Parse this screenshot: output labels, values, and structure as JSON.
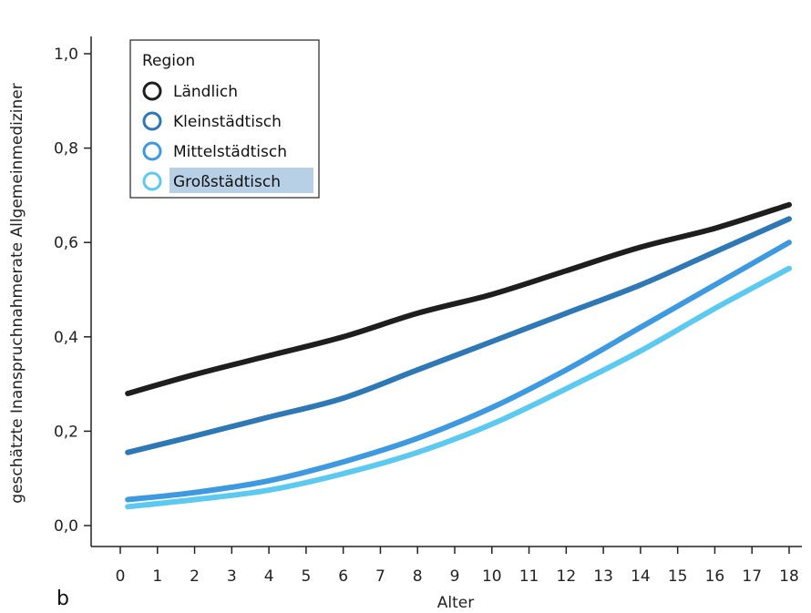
{
  "panel_label": "b",
  "chart_data": {
    "type": "line",
    "xlabel": "Alter",
    "ylabel": "geschätzte Inanspruchnahmerate Allgemeinmediziner",
    "xlim": [
      0,
      18
    ],
    "ylim": [
      0.0,
      1.0
    ],
    "x_ticks": [
      "0",
      "1",
      "2",
      "3",
      "4",
      "5",
      "6",
      "7",
      "8",
      "9",
      "10",
      "11",
      "12",
      "13",
      "14",
      "15",
      "16",
      "17",
      "18"
    ],
    "y_ticks": [
      "0,0",
      "0,2",
      "0,4",
      "0,6",
      "0,8",
      "1,0"
    ],
    "y_tick_values": [
      0.0,
      0.2,
      0.4,
      0.6,
      0.8,
      1.0
    ],
    "grid": false,
    "legend": {
      "title": "Region",
      "position": "top-left"
    },
    "x": [
      0.2,
      2,
      4,
      6,
      8,
      10,
      12,
      14,
      16,
      18
    ],
    "series": [
      {
        "name": "Ländlich",
        "color": "#1e1e1e",
        "values": [
          0.28,
          0.32,
          0.36,
          0.4,
          0.45,
          0.49,
          0.54,
          0.59,
          0.63,
          0.68
        ]
      },
      {
        "name": "Kleinstädtisch",
        "color": "#2e78b6",
        "values": [
          0.155,
          0.19,
          0.23,
          0.27,
          0.33,
          0.39,
          0.45,
          0.51,
          0.58,
          0.65
        ]
      },
      {
        "name": "Mittelstädtisch",
        "color": "#3d9ae0",
        "values": [
          0.055,
          0.07,
          0.095,
          0.135,
          0.185,
          0.25,
          0.33,
          0.42,
          0.51,
          0.6
        ]
      },
      {
        "name": "Großstädtisch",
        "color": "#5ccaf0",
        "values": [
          0.04,
          0.055,
          0.075,
          0.11,
          0.155,
          0.215,
          0.29,
          0.37,
          0.46,
          0.545
        ]
      }
    ]
  }
}
